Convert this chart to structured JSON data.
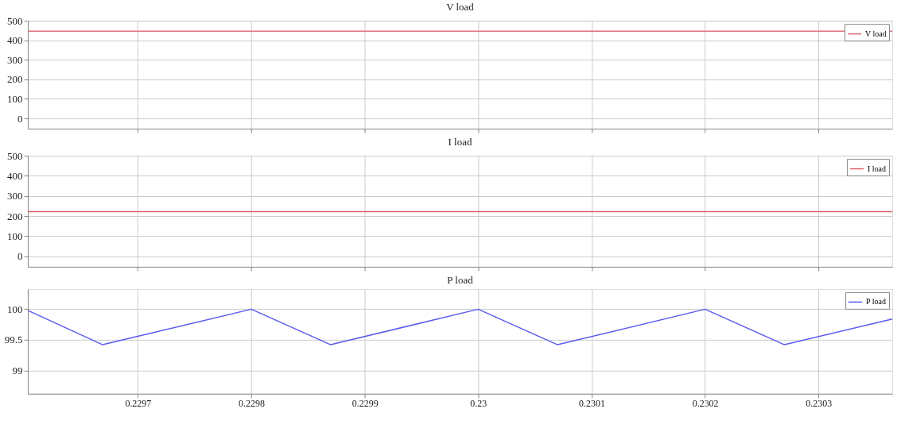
{
  "chart_data": [
    {
      "type": "line",
      "title": "V load",
      "xlim": [
        0.229603,
        0.230365
      ],
      "xticks": [
        0.2297,
        0.2298,
        0.2299,
        0.23,
        0.2301,
        0.2302,
        0.2303
      ],
      "ylim": [
        -53,
        500
      ],
      "yticks": [
        0,
        100,
        200,
        300,
        400,
        500
      ],
      "tick_labels": "y",
      "grid": true,
      "legend": "top right",
      "series": [
        {
          "name": "V load",
          "color": "#e0707c",
          "x": [
            0.229603,
            0.230365
          ],
          "values": [
            447,
            447
          ]
        }
      ]
    },
    {
      "type": "line",
      "title": "I load",
      "xlim": [
        0.229603,
        0.230365
      ],
      "xticks": [
        0.2297,
        0.2298,
        0.2299,
        0.23,
        0.2301,
        0.2302,
        0.2303
      ],
      "ylim": [
        -52,
        500
      ],
      "yticks": [
        0,
        100,
        200,
        300,
        400,
        500
      ],
      "tick_labels": "y",
      "grid": true,
      "legend": "top right",
      "series": [
        {
          "name": "I load",
          "color": "#e06068",
          "x": [
            0.229603,
            0.230365
          ],
          "values": [
            222,
            222
          ]
        }
      ]
    },
    {
      "type": "line",
      "title": "P load",
      "xlim": [
        0.229603,
        0.230365
      ],
      "xticks": [
        0.2297,
        0.2298,
        0.2299,
        0.23,
        0.2301,
        0.2302,
        0.2303
      ],
      "ylim": [
        98.62,
        100.33
      ],
      "yticks": [
        99,
        99.5,
        100
      ],
      "grid": true,
      "legend": "top right",
      "series": [
        {
          "name": "P load",
          "color": "#5a5aee",
          "x": [
            0.229603,
            0.229669,
            0.2298,
            0.22987,
            0.23,
            0.23007,
            0.2302,
            0.23027,
            0.230365
          ],
          "values": [
            99.98,
            99.42,
            100,
            99.42,
            100,
            99.42,
            100,
            99.42,
            99.84
          ]
        }
      ]
    }
  ]
}
